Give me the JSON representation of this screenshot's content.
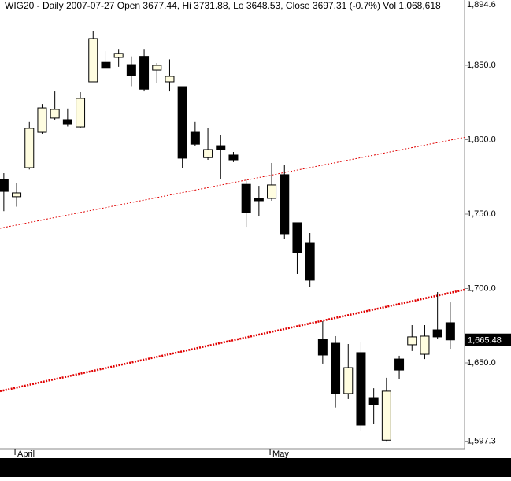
{
  "chart_data": {
    "type": "candlestick",
    "title": "WIG20 - Daily 2007-07-27 Open 3677.44, Hi 3731.88, Lo 3648.53, Close 3697.31 (-0.7%) Vol 1,068,618",
    "categories": [
      null,
      "April",
      null,
      null,
      null,
      null,
      null,
      null,
      null,
      null,
      null,
      null,
      null,
      null,
      null,
      null,
      null,
      null,
      null,
      null,
      null,
      "May",
      null,
      null,
      null,
      null,
      null,
      null,
      null,
      null,
      null,
      null,
      null,
      null,
      null,
      null
    ],
    "open": [
      1773.3,
      1761.7,
      1781.2,
      1805,
      1814.6,
      1813.5,
      1808.7,
      1838.9,
      1852,
      1855.3,
      1850.5,
      1856,
      1846.8,
      1838.9,
      1835.7,
      1805,
      1788,
      1796,
      1789.7,
      1770,
      1760.6,
      1760.6,
      1776.5,
      1744.2,
      1730.4,
      1665.9,
      1663.2,
      1629.4,
      1656.9,
      1626.7,
      1598,
      1652.6,
      1662.2,
      1655.8,
      1672.2,
      1677
    ],
    "high": [
      1777.5,
      1771,
      1812,
      1824,
      1832.5,
      1821,
      1832,
      1872.8,
      1859.5,
      1861,
      1856,
      1861,
      1851.6,
      1854,
      1835.7,
      1812,
      1808.2,
      1803,
      1791.8,
      1773.3,
      1769,
      1784.4,
      1783.3,
      1744.2,
      1737.3,
      1678,
      1668,
      1662.7,
      1663.8,
      1633,
      1640,
      1654.8,
      1675.4,
      1675.4,
      1697.6,
      1690.7
    ],
    "low": [
      1752,
      1755,
      1780,
      1804,
      1813.5,
      1809,
      1808,
      1838.9,
      1848,
      1849,
      1836,
      1832.5,
      1838,
      1832.5,
      1781.2,
      1796,
      1786.5,
      1773.3,
      1785,
      1741.5,
      1748.4,
      1759,
      1733.6,
      1709.8,
      1701.3,
      1649.5,
      1620,
      1625.7,
      1604.5,
      1609.2,
      1597.5,
      1638.9,
      1658,
      1652.6,
      1666.4,
      1659.5
    ],
    "close": [
      1765.3,
      1764.3,
      1807.7,
      1821.4,
      1820.4,
      1810.3,
      1827.8,
      1868,
      1848,
      1858,
      1843,
      1834,
      1850,
      1842.6,
      1787.6,
      1797,
      1793.4,
      1793.4,
      1786.5,
      1751,
      1759,
      1769.6,
      1736.8,
      1724.1,
      1705.6,
      1655.3,
      1629.4,
      1646.8,
      1608.2,
      1621.9,
      1631,
      1645.2,
      1667.5,
      1668,
      1667.5,
      1665.48
    ],
    "up_color": "#fffde0",
    "down_color": "#000000",
    "ylim": [
      1597.3,
      1894.6
    ],
    "yticks": [
      {
        "value": 1597.3,
        "label": "1,597.3"
      },
      {
        "value": 1650,
        "label": "1,650.0"
      },
      {
        "value": 1700,
        "label": "1,700.0"
      },
      {
        "value": 1750,
        "label": "1,750.0"
      },
      {
        "value": 1800,
        "label": "1,800.0"
      },
      {
        "value": 1850,
        "label": "1,850.0"
      },
      {
        "value": 1894.6,
        "label": "1,894.6"
      }
    ],
    "trendlines": [
      {
        "color": "#e00000",
        "width": 1,
        "values": [
          1740.5,
          1801.6
        ]
      },
      {
        "color": "#e00000",
        "width": 2.5,
        "values": [
          1631,
          1699.2
        ]
      }
    ],
    "last_price": {
      "value": 1665.48,
      "label": "1,665.48"
    }
  }
}
